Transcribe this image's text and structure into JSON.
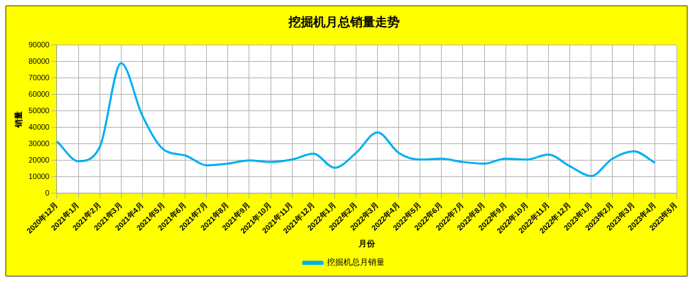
{
  "chart_data": {
    "type": "line",
    "title": "挖掘机月总销量走势",
    "xlabel": "月份",
    "ylabel": "销量",
    "categories": [
      "2020年12月",
      "2021年1月",
      "2021年2月",
      "2021年3月",
      "2021年4月",
      "2021年5月",
      "2021年6月",
      "2021年7月",
      "2021年8月",
      "2021年9月",
      "2021年10月",
      "2021年11月",
      "2021年12月",
      "2022年1月",
      "2022年2月",
      "2022年3月",
      "2022年4月",
      "2022年5月",
      "2022年6月",
      "2022年7月",
      "2022年8月",
      "2022年9月",
      "2022年10月",
      "2022年11月",
      "2022年12月",
      "2023年1月",
      "2023年2月",
      "2023年3月",
      "2023年4月",
      "2023年5月"
    ],
    "series": [
      {
        "name": "挖掘机总月销量",
        "color": "#00b0f0",
        "values": [
          31500,
          19500,
          28000,
          79000,
          47000,
          26500,
          23000,
          17000,
          18000,
          20000,
          19000,
          20500,
          24000,
          15500,
          24500,
          37000,
          24500,
          20500,
          21000,
          19000,
          18000,
          21000,
          20500,
          23500,
          16500,
          10500,
          21000,
          25500,
          18500,
          null
        ]
      }
    ],
    "ylim": [
      0,
      90000
    ],
    "yticks": [
      0,
      10000,
      20000,
      30000,
      40000,
      50000,
      60000,
      70000,
      80000,
      90000
    ],
    "grid": true,
    "legend": "bottom",
    "marker": "none",
    "line_style": "solid"
  }
}
